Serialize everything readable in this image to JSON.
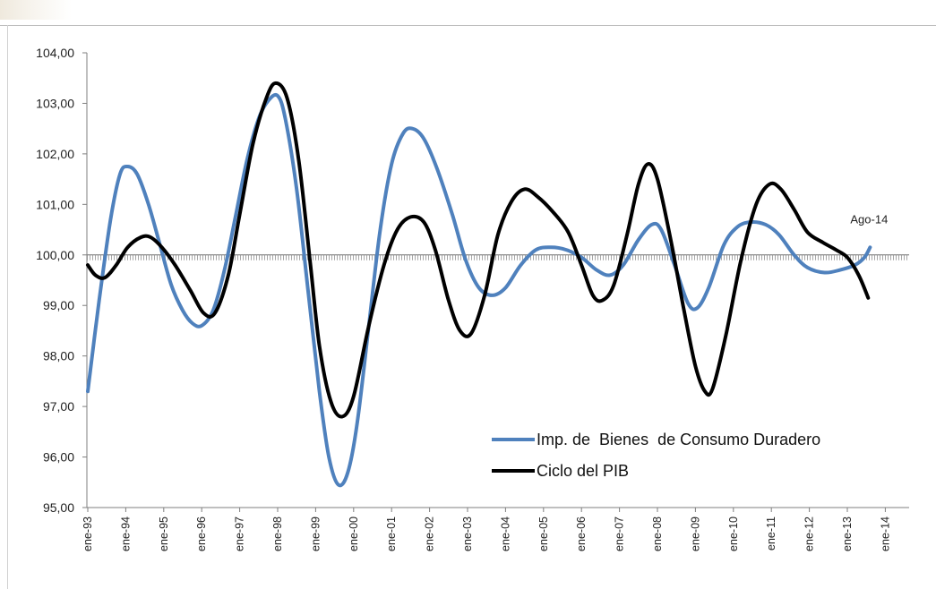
{
  "chart_data": {
    "type": "line",
    "title": "",
    "xlabel": "",
    "ylabel": "",
    "ylim": [
      95,
      104
    ],
    "y_ticks": [
      "104,00",
      "103,00",
      "102,00",
      "101,00",
      "100,00",
      "99,00",
      "98,00",
      "97,00",
      "96,00",
      "95,00"
    ],
    "x_tick_labels": [
      "ene-93",
      "ene-94",
      "ene-95",
      "ene-96",
      "ene-97",
      "ene-98",
      "ene-99",
      "ene-00",
      "ene-01",
      "ene-02",
      "ene-03",
      "ene-04",
      "ene-05",
      "ene-06",
      "ene-07",
      "ene-08",
      "ene-09",
      "ene-10",
      "ene-11",
      "ene-12",
      "ene-13",
      "ene-14"
    ],
    "reference_line": 100,
    "grid": false,
    "legend_position": "bottom-right",
    "annotation": "Ago-14",
    "series": [
      {
        "name": "Imp. de  Bienes  de Consumo Duradero",
        "color": "#4f81bd",
        "points": [
          [
            1993.0,
            97.3
          ],
          [
            1993.3,
            99.1
          ],
          [
            1993.6,
            100.7
          ],
          [
            1993.85,
            101.6
          ],
          [
            1994.05,
            101.75
          ],
          [
            1994.3,
            101.6
          ],
          [
            1994.6,
            101.0
          ],
          [
            1994.9,
            100.2
          ],
          [
            1995.2,
            99.4
          ],
          [
            1995.5,
            98.9
          ],
          [
            1995.75,
            98.65
          ],
          [
            1996.0,
            98.6
          ],
          [
            1996.3,
            98.9
          ],
          [
            1996.6,
            99.7
          ],
          [
            1996.9,
            100.8
          ],
          [
            1997.2,
            101.9
          ],
          [
            1997.5,
            102.7
          ],
          [
            1997.75,
            103.05
          ],
          [
            1998.0,
            103.15
          ],
          [
            1998.2,
            102.7
          ],
          [
            1998.5,
            101.3
          ],
          [
            1998.8,
            99.3
          ],
          [
            1999.1,
            97.3
          ],
          [
            1999.35,
            96.0
          ],
          [
            1999.6,
            95.45
          ],
          [
            1999.85,
            95.7
          ],
          [
            2000.1,
            96.7
          ],
          [
            2000.4,
            98.6
          ],
          [
            2000.7,
            100.5
          ],
          [
            2001.0,
            101.8
          ],
          [
            2001.3,
            102.4
          ],
          [
            2001.55,
            102.5
          ],
          [
            2001.85,
            102.3
          ],
          [
            2002.2,
            101.7
          ],
          [
            2002.6,
            100.8
          ],
          [
            2002.95,
            99.9
          ],
          [
            2003.3,
            99.35
          ],
          [
            2003.65,
            99.2
          ],
          [
            2004.0,
            99.35
          ],
          [
            2004.4,
            99.8
          ],
          [
            2004.8,
            100.1
          ],
          [
            2005.2,
            100.15
          ],
          [
            2005.6,
            100.1
          ],
          [
            2006.0,
            99.95
          ],
          [
            2006.4,
            99.7
          ],
          [
            2006.75,
            99.6
          ],
          [
            2007.1,
            99.8
          ],
          [
            2007.5,
            100.3
          ],
          [
            2007.85,
            100.6
          ],
          [
            2008.1,
            100.5
          ],
          [
            2008.45,
            99.8
          ],
          [
            2008.8,
            99.05
          ],
          [
            2009.05,
            98.95
          ],
          [
            2009.35,
            99.35
          ],
          [
            2009.75,
            100.2
          ],
          [
            2010.1,
            100.55
          ],
          [
            2010.45,
            100.65
          ],
          [
            2010.85,
            100.6
          ],
          [
            2011.2,
            100.4
          ],
          [
            2011.6,
            100.0
          ],
          [
            2011.95,
            99.75
          ],
          [
            2012.4,
            99.65
          ],
          [
            2012.8,
            99.7
          ],
          [
            2013.2,
            99.8
          ],
          [
            2013.45,
            99.95
          ],
          [
            2013.6,
            100.15
          ]
        ]
      },
      {
        "name": "Ciclo del PIB",
        "color": "#000000",
        "points": [
          [
            1993.0,
            99.8
          ],
          [
            1993.2,
            99.6
          ],
          [
            1993.45,
            99.55
          ],
          [
            1993.75,
            99.8
          ],
          [
            1994.05,
            100.15
          ],
          [
            1994.4,
            100.35
          ],
          [
            1994.65,
            100.35
          ],
          [
            1994.95,
            100.15
          ],
          [
            1995.3,
            99.8
          ],
          [
            1995.7,
            99.3
          ],
          [
            1996.05,
            98.85
          ],
          [
            1996.35,
            98.85
          ],
          [
            1996.7,
            99.6
          ],
          [
            1997.0,
            100.8
          ],
          [
            1997.35,
            102.2
          ],
          [
            1997.7,
            103.1
          ],
          [
            1997.95,
            103.4
          ],
          [
            1998.25,
            103.1
          ],
          [
            1998.55,
            101.9
          ],
          [
            1998.85,
            99.9
          ],
          [
            1999.1,
            98.2
          ],
          [
            1999.4,
            97.1
          ],
          [
            1999.7,
            96.8
          ],
          [
            2000.0,
            97.2
          ],
          [
            2000.4,
            98.6
          ],
          [
            2000.8,
            99.8
          ],
          [
            2001.15,
            100.5
          ],
          [
            2001.5,
            100.75
          ],
          [
            2001.85,
            100.65
          ],
          [
            2002.15,
            100.1
          ],
          [
            2002.5,
            99.1
          ],
          [
            2002.8,
            98.5
          ],
          [
            2003.1,
            98.45
          ],
          [
            2003.45,
            99.2
          ],
          [
            2003.8,
            100.4
          ],
          [
            2004.15,
            101.05
          ],
          [
            2004.5,
            101.3
          ],
          [
            2004.85,
            101.15
          ],
          [
            2005.25,
            100.85
          ],
          [
            2005.65,
            100.45
          ],
          [
            2006.0,
            99.8
          ],
          [
            2006.3,
            99.2
          ],
          [
            2006.55,
            99.1
          ],
          [
            2006.85,
            99.4
          ],
          [
            2007.2,
            100.4
          ],
          [
            2007.5,
            101.4
          ],
          [
            2007.75,
            101.8
          ],
          [
            2008.0,
            101.5
          ],
          [
            2008.35,
            100.3
          ],
          [
            2008.7,
            98.9
          ],
          [
            2009.0,
            97.8
          ],
          [
            2009.25,
            97.3
          ],
          [
            2009.45,
            97.35
          ],
          [
            2009.8,
            98.4
          ],
          [
            2010.2,
            99.9
          ],
          [
            2010.6,
            101.0
          ],
          [
            2010.95,
            101.4
          ],
          [
            2011.25,
            101.3
          ],
          [
            2011.6,
            100.9
          ],
          [
            2011.95,
            100.45
          ],
          [
            2012.35,
            100.25
          ],
          [
            2012.7,
            100.1
          ],
          [
            2013.0,
            99.95
          ],
          [
            2013.3,
            99.6
          ],
          [
            2013.55,
            99.15
          ]
        ]
      }
    ]
  }
}
